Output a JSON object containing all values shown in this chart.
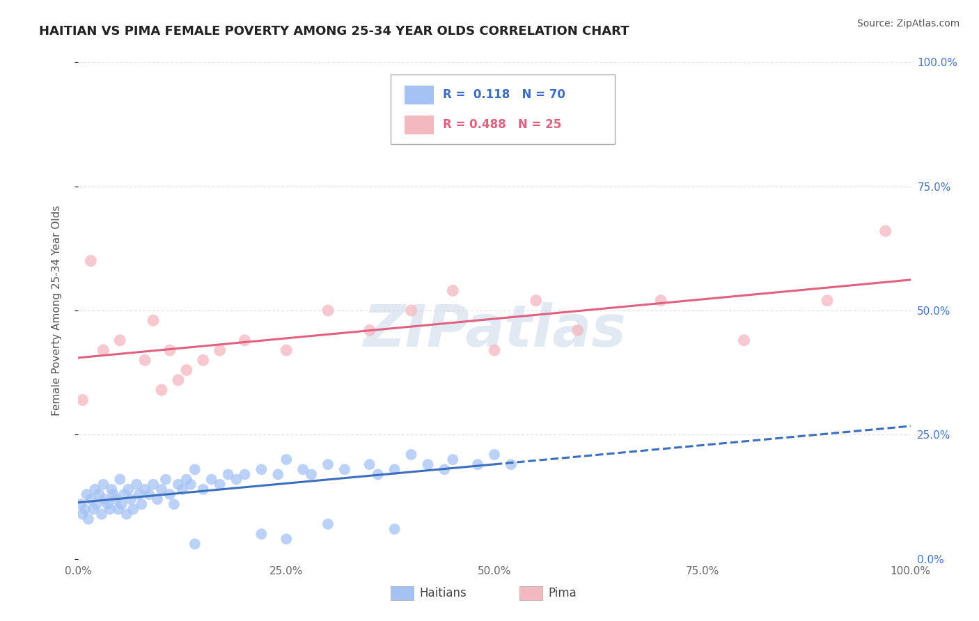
{
  "title": "HAITIAN VS PIMA FEMALE POVERTY AMONG 25-34 YEAR OLDS CORRELATION CHART",
  "source": "Source: ZipAtlas.com",
  "ylabel": "Female Poverty Among 25-34 Year Olds",
  "watermark": "ZIPatlas",
  "haitian_color": "#a4c2f4",
  "pima_color": "#f4b8c1",
  "haitian_line_color": "#3c6ebf",
  "pima_line_color": "#e06080",
  "background_color": "#ffffff",
  "grid_color": "#dddddd",
  "title_color": "#222222",
  "right_axis_color": "#4472c4",
  "title_fontsize": 13,
  "source_fontsize": 10,
  "xlim": [
    0,
    100
  ],
  "ylim": [
    0,
    100
  ],
  "legend_r1": "R =  0.118   N = 70",
  "legend_r2": "R = 0.488   N = 25",
  "haitian_x": [
    0.3,
    0.5,
    0.8,
    1.0,
    1.2,
    1.5,
    1.8,
    2.0,
    2.2,
    2.5,
    2.8,
    3.0,
    3.2,
    3.5,
    3.8,
    4.0,
    4.2,
    4.5,
    4.8,
    5.0,
    5.2,
    5.5,
    5.8,
    6.0,
    6.3,
    6.6,
    7.0,
    7.3,
    7.6,
    8.0,
    8.5,
    9.0,
    9.5,
    10.0,
    10.5,
    11.0,
    11.5,
    12.0,
    12.5,
    13.0,
    13.5,
    14.0,
    15.0,
    16.0,
    17.0,
    18.0,
    19.0,
    20.0,
    22.0,
    24.0,
    25.0,
    27.0,
    28.0,
    30.0,
    32.0,
    35.0,
    36.0,
    38.0,
    40.0,
    42.0,
    44.0,
    45.0,
    48.0,
    50.0,
    52.0,
    22.0,
    25.0,
    14.0,
    30.0,
    38.0
  ],
  "haitian_y": [
    11,
    9,
    10,
    13,
    8,
    12,
    10,
    14,
    11,
    13,
    9,
    15,
    12,
    11,
    10,
    14,
    13,
    12,
    10,
    16,
    11,
    13,
    9,
    14,
    12,
    10,
    15,
    13,
    11,
    14,
    13,
    15,
    12,
    14,
    16,
    13,
    11,
    15,
    14,
    16,
    15,
    18,
    14,
    16,
    15,
    17,
    16,
    17,
    18,
    17,
    20,
    18,
    17,
    19,
    18,
    19,
    17,
    18,
    21,
    19,
    18,
    20,
    19,
    21,
    19,
    5,
    4,
    3,
    7,
    6
  ],
  "pima_x": [
    0.5,
    1.5,
    3.0,
    5.0,
    8.0,
    9.0,
    10.0,
    11.0,
    12.0,
    13.0,
    15.0,
    17.0,
    20.0,
    25.0,
    30.0,
    35.0,
    40.0,
    45.0,
    50.0,
    55.0,
    60.0,
    70.0,
    80.0,
    90.0,
    97.0
  ],
  "pima_y": [
    32,
    60,
    42,
    44,
    40,
    48,
    34,
    42,
    36,
    38,
    40,
    42,
    44,
    42,
    50,
    46,
    50,
    54,
    42,
    52,
    46,
    52,
    44,
    52,
    66
  ]
}
